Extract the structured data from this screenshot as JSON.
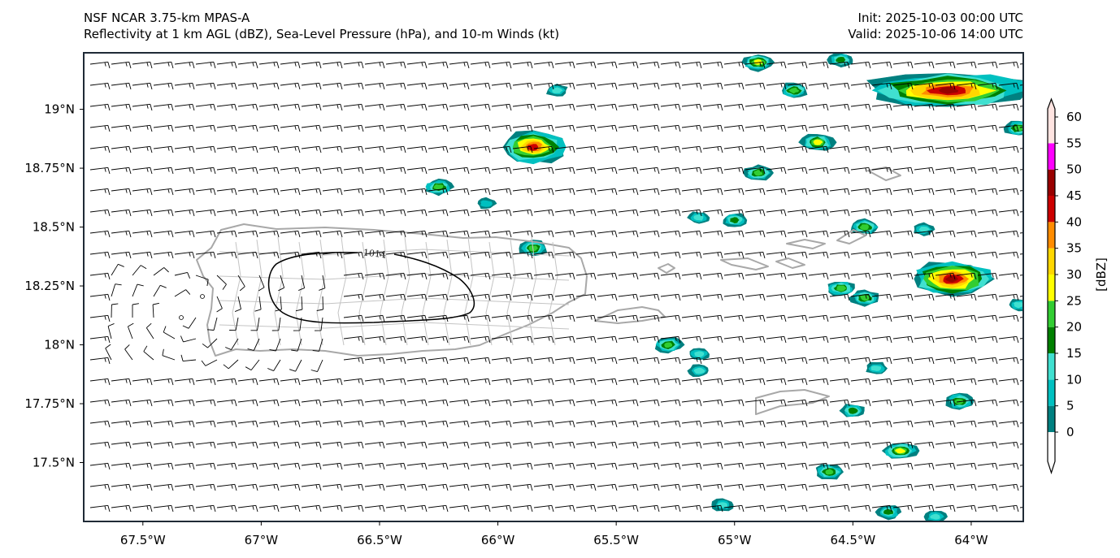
{
  "header": {
    "model_title": "NSF NCAR 3.75-km MPAS-A",
    "fields_title": "Reflectivity at 1 km AGL (dBZ), Sea-Level Pressure (hPa), and 10-m Winds (kt)",
    "init_time": "Init: 2025-10-03 00:00 UTC",
    "valid_time": "Valid: 2025-10-06 14:00 UTC"
  },
  "map": {
    "extent": {
      "lon_min": -67.75,
      "lon_max": -63.78,
      "lat_min": 17.25,
      "lat_max": 19.24
    },
    "x_ticks": [
      {
        "value": -67.5,
        "label": "67.5°W"
      },
      {
        "value": -67.0,
        "label": "67°W"
      },
      {
        "value": -66.5,
        "label": "66.5°W"
      },
      {
        "value": -66.0,
        "label": "66°W"
      },
      {
        "value": -65.5,
        "label": "65.5°W"
      },
      {
        "value": -65.0,
        "label": "65°W"
      },
      {
        "value": -64.5,
        "label": "64.5°W"
      },
      {
        "value": -64.0,
        "label": "64°W"
      }
    ],
    "y_ticks": [
      {
        "value": 19.0,
        "label": "19°N"
      },
      {
        "value": 18.75,
        "label": "18.75°N"
      },
      {
        "value": 18.5,
        "label": "18.5°N"
      },
      {
        "value": 18.25,
        "label": "18.25°N"
      },
      {
        "value": 18.0,
        "label": "18°N"
      },
      {
        "value": 17.75,
        "label": "17.75°N"
      },
      {
        "value": 17.5,
        "label": "17.5°N"
      }
    ],
    "isobars": [
      {
        "value": 1014,
        "label": "1014"
      }
    ],
    "colors": {
      "coastline": "#a8a8a8",
      "border": "#c4c4c4",
      "isobar": "#000000",
      "barb": "#000000",
      "frame": "#1f2a36"
    },
    "reflectivity_cells": [
      {
        "lon": -64.1,
        "lat": 19.08,
        "max_dbz": 45
      },
      {
        "lon": -64.08,
        "lat": 18.28,
        "max_dbz": 45
      },
      {
        "lon": -65.85,
        "lat": 18.84,
        "max_dbz": 40
      },
      {
        "lon": -64.9,
        "lat": 19.2,
        "max_dbz": 25
      },
      {
        "lon": -64.65,
        "lat": 18.86,
        "max_dbz": 25
      },
      {
        "lon": -64.3,
        "lat": 17.55,
        "max_dbz": 25
      },
      {
        "lon": -64.05,
        "lat": 17.76,
        "max_dbz": 20
      },
      {
        "lon": -64.45,
        "lat": 18.5,
        "max_dbz": 20
      },
      {
        "lon": -64.6,
        "lat": 17.46,
        "max_dbz": 20
      },
      {
        "lon": -64.45,
        "lat": 18.2,
        "max_dbz": 20
      },
      {
        "lon": -64.55,
        "lat": 18.24,
        "max_dbz": 20
      },
      {
        "lon": -66.25,
        "lat": 18.67,
        "max_dbz": 20
      },
      {
        "lon": -65.28,
        "lat": 18.0,
        "max_dbz": 20
      },
      {
        "lon": -65.85,
        "lat": 18.41,
        "max_dbz": 20
      },
      {
        "lon": -64.9,
        "lat": 18.73,
        "max_dbz": 20
      },
      {
        "lon": -64.75,
        "lat": 19.08,
        "max_dbz": 20
      },
      {
        "lon": -63.8,
        "lat": 18.92,
        "max_dbz": 20
      },
      {
        "lon": -65.15,
        "lat": 17.96,
        "max_dbz": 10
      },
      {
        "lon": -65.15,
        "lat": 17.89,
        "max_dbz": 10
      },
      {
        "lon": -64.4,
        "lat": 17.9,
        "max_dbz": 10
      },
      {
        "lon": -64.2,
        "lat": 18.49,
        "max_dbz": 10
      },
      {
        "lon": -64.5,
        "lat": 17.72,
        "max_dbz": 15
      },
      {
        "lon": -65.0,
        "lat": 18.53,
        "max_dbz": 15
      },
      {
        "lon": -65.15,
        "lat": 18.54,
        "max_dbz": 10
      },
      {
        "lon": -66.05,
        "lat": 18.6,
        "max_dbz": 5
      },
      {
        "lon": -64.55,
        "lat": 19.21,
        "max_dbz": 15
      },
      {
        "lon": -65.75,
        "lat": 19.08,
        "max_dbz": 10
      },
      {
        "lon": -65.05,
        "lat": 17.32,
        "max_dbz": 10
      },
      {
        "lon": -64.35,
        "lat": 17.29,
        "max_dbz": 15
      },
      {
        "lon": -64.15,
        "lat": 17.27,
        "max_dbz": 10
      },
      {
        "lon": -63.8,
        "lat": 18.17,
        "max_dbz": 10
      }
    ]
  },
  "colorbar": {
    "label": "[dBZ]",
    "levels": [
      0,
      5,
      10,
      15,
      20,
      25,
      30,
      35,
      40,
      45,
      50,
      55,
      60
    ],
    "tick_labels": [
      "0",
      "5",
      "10",
      "15",
      "20",
      "25",
      "30",
      "35",
      "40",
      "45",
      "50",
      "55",
      "60"
    ],
    "colors": [
      "#008080",
      "#00c0c0",
      "#40e0d0",
      "#008000",
      "#32cd32",
      "#ffff00",
      "#ffd700",
      "#ff8c00",
      "#cc0000",
      "#990000",
      "#ff00ff",
      "#ffe4e1"
    ],
    "under_color": "#ffffff",
    "over_color": "#ffe4e1"
  }
}
